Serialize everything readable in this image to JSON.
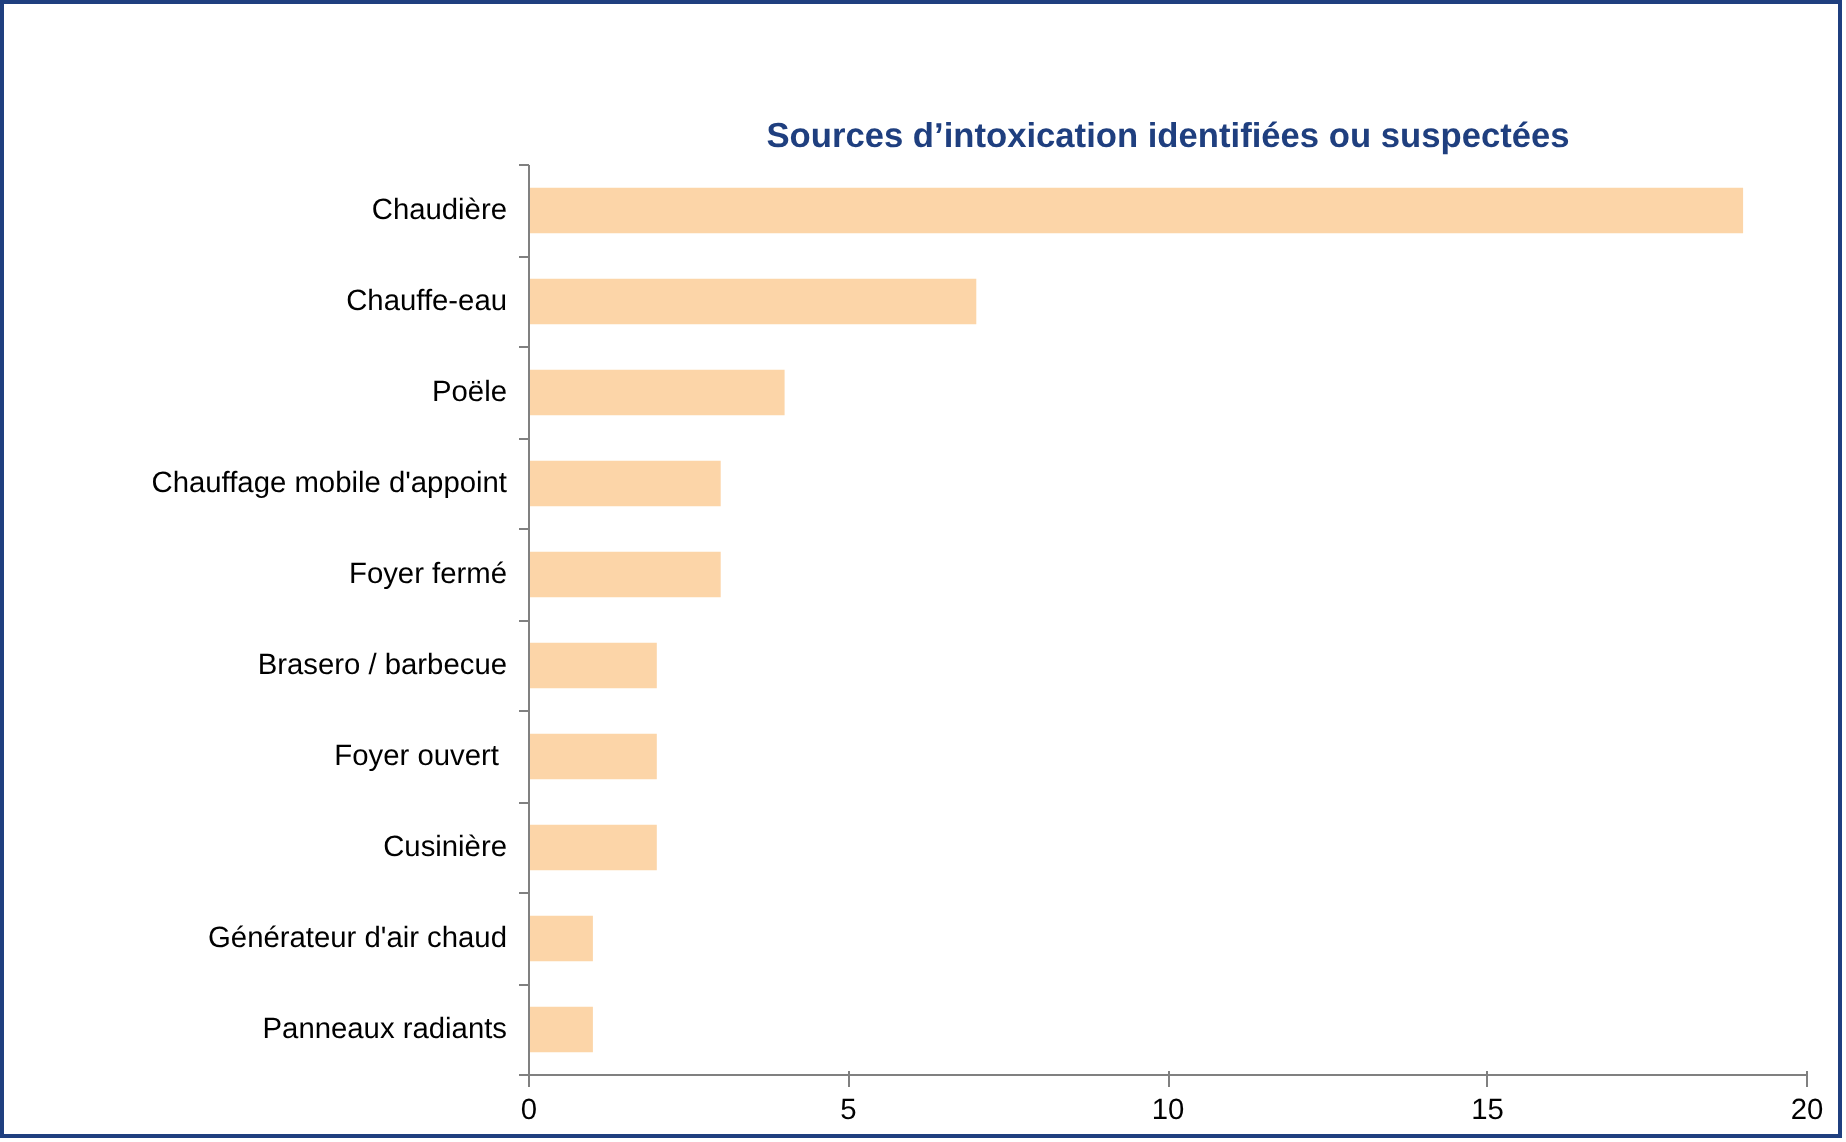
{
  "chart_data": {
    "type": "bar",
    "orientation": "horizontal",
    "title": "Sources d’intoxication identifiées ou suspectées",
    "categories": [
      "Chaudière",
      "Chauffe-eau",
      "Poële",
      "Chauffage mobile d'appoint",
      "Foyer fermé",
      "Brasero / barbecue",
      "Foyer ouvert ",
      "Cusinière",
      "Générateur d'air chaud",
      "Panneaux radiants"
    ],
    "values": [
      19,
      7,
      4,
      3,
      3,
      2,
      2,
      2,
      1,
      1
    ],
    "color": "#fcd5a8",
    "xlim": [
      0,
      20
    ],
    "xticks": [
      0,
      5,
      10,
      15,
      20
    ],
    "grid": false
  }
}
